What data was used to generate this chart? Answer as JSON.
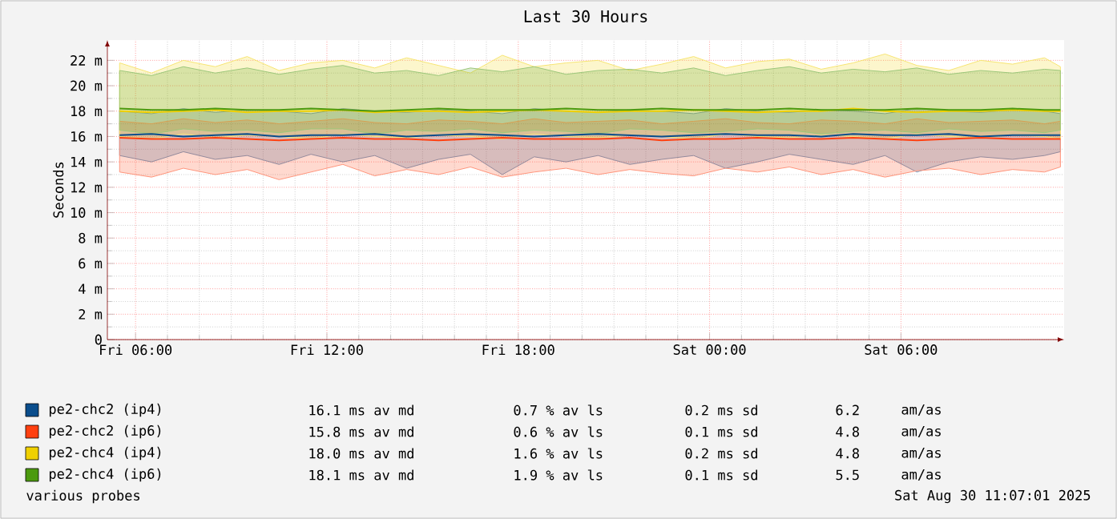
{
  "chart_data": {
    "type": "line",
    "title": "Last 30 Hours",
    "ylabel": "Seconds",
    "x": [
      "2025-08-29T05:30",
      "2025-08-29T06:30",
      "2025-08-29T07:30",
      "2025-08-29T08:30",
      "2025-08-29T09:30",
      "2025-08-29T10:30",
      "2025-08-29T11:30",
      "2025-08-29T12:30",
      "2025-08-29T13:30",
      "2025-08-29T14:30",
      "2025-08-29T15:30",
      "2025-08-29T16:30",
      "2025-08-29T17:30",
      "2025-08-29T18:30",
      "2025-08-29T19:30",
      "2025-08-29T20:30",
      "2025-08-29T21:30",
      "2025-08-29T22:30",
      "2025-08-29T23:30",
      "2025-08-30T00:30",
      "2025-08-30T01:30",
      "2025-08-30T02:30",
      "2025-08-30T03:30",
      "2025-08-30T04:30",
      "2025-08-30T05:30",
      "2025-08-30T06:30",
      "2025-08-30T07:30",
      "2025-08-30T08:30",
      "2025-08-30T09:30",
      "2025-08-30T10:30",
      "2025-08-30T11:00"
    ],
    "xlim": [
      "2025-08-29T05:07",
      "2025-08-30T11:07"
    ],
    "xticks": [
      {
        "value": "2025-08-29T06:00",
        "label": "Fri 06:00"
      },
      {
        "value": "2025-08-29T12:00",
        "label": "Fri 12:00"
      },
      {
        "value": "2025-08-29T18:00",
        "label": "Fri 18:00"
      },
      {
        "value": "2025-08-30T00:00",
        "label": "Sat 00:00"
      },
      {
        "value": "2025-08-30T06:00",
        "label": "Sat 06:00"
      }
    ],
    "ylim": [
      0,
      23.6
    ],
    "yticks": [
      0,
      {
        "value": 2,
        "label": "2 m"
      },
      {
        "value": 4,
        "label": "4 m"
      },
      {
        "value": 6,
        "label": "6 m"
      },
      {
        "value": 8,
        "label": "8 m"
      },
      {
        "value": 10,
        "label": "10 m"
      },
      {
        "value": 12,
        "label": "12 m"
      },
      {
        "value": 14,
        "label": "14 m"
      },
      {
        "value": 16,
        "label": "16 m"
      },
      {
        "value": 18,
        "label": "18 m"
      },
      {
        "value": 20,
        "label": "20 m"
      },
      {
        "value": 22,
        "label": "22 m"
      }
    ],
    "grid": true,
    "legend": "bottom",
    "line_style": "solid",
    "series": [
      {
        "name": "pe2-chc2 (ip4)",
        "color": "#0a4d8c",
        "values": [
          16.1,
          16.2,
          16.0,
          16.1,
          16.2,
          16.0,
          16.1,
          16.1,
          16.2,
          16.0,
          16.1,
          16.2,
          16.1,
          16.0,
          16.1,
          16.2,
          16.1,
          16.0,
          16.1,
          16.2,
          16.1,
          16.1,
          16.0,
          16.2,
          16.1,
          16.1,
          16.2,
          16.0,
          16.1,
          16.1,
          16.1
        ],
        "lower": [
          14.5,
          14.0,
          14.8,
          14.2,
          14.5,
          13.8,
          14.6,
          14.0,
          14.5,
          13.5,
          14.2,
          14.6,
          13.0,
          14.4,
          14.0,
          14.5,
          13.8,
          14.2,
          14.5,
          13.5,
          14.0,
          14.6,
          14.2,
          13.8,
          14.5,
          13.2,
          14.0,
          14.4,
          14.2,
          14.5,
          14.8
        ],
        "upper": [
          18.0,
          17.8,
          18.2,
          17.9,
          18.1,
          18.0,
          17.8,
          18.2,
          18.0,
          17.9,
          18.1,
          18.0,
          17.8,
          18.2,
          18.0,
          17.9,
          18.1,
          18.0,
          17.8,
          18.2,
          18.0,
          17.9,
          18.1,
          18.0,
          17.8,
          18.2,
          18.0,
          17.9,
          18.1,
          18.0,
          17.8
        ]
      },
      {
        "name": "pe2-chc2 (ip6)",
        "color": "#ff4010",
        "values": [
          15.9,
          15.8,
          15.8,
          15.9,
          15.8,
          15.7,
          15.8,
          15.9,
          15.8,
          15.8,
          15.7,
          15.8,
          15.9,
          15.8,
          15.8,
          15.8,
          15.9,
          15.7,
          15.8,
          15.8,
          15.9,
          15.8,
          15.8,
          15.9,
          15.8,
          15.7,
          15.8,
          15.9,
          15.8,
          15.8,
          15.8
        ],
        "lower": [
          13.2,
          12.8,
          13.5,
          13.0,
          13.4,
          12.6,
          13.2,
          13.8,
          12.9,
          13.4,
          13.0,
          13.6,
          12.8,
          13.2,
          13.5,
          13.0,
          13.4,
          13.1,
          12.9,
          13.5,
          13.2,
          13.6,
          13.0,
          13.4,
          12.8,
          13.3,
          13.5,
          13.0,
          13.4,
          13.2,
          13.6
        ],
        "upper": [
          17.2,
          17.0,
          17.4,
          17.1,
          17.3,
          17.0,
          17.2,
          17.4,
          17.1,
          17.0,
          17.3,
          17.2,
          17.0,
          17.4,
          17.1,
          17.2,
          17.3,
          17.0,
          17.2,
          17.4,
          17.1,
          17.0,
          17.3,
          17.2,
          17.0,
          17.4,
          17.1,
          17.2,
          17.3,
          17.0,
          17.2
        ]
      },
      {
        "name": "pe2-chc4 (ip4)",
        "color": "#f0d000",
        "values": [
          18.0,
          17.9,
          18.0,
          18.1,
          17.9,
          18.0,
          18.0,
          18.1,
          17.9,
          18.0,
          18.0,
          17.9,
          18.0,
          18.1,
          18.0,
          17.9,
          18.0,
          18.0,
          18.1,
          18.0,
          17.9,
          18.0,
          18.0,
          18.2,
          18.0,
          17.9,
          18.0,
          18.0,
          18.1,
          18.0,
          18.0
        ],
        "lower": [
          16.0,
          15.8,
          16.2,
          15.9,
          16.1,
          16.0,
          15.8,
          16.2,
          16.0,
          15.9,
          16.1,
          16.0,
          15.8,
          16.2,
          16.0,
          15.9,
          16.1,
          16.0,
          15.8,
          16.2,
          16.0,
          15.9,
          16.1,
          16.0,
          15.8,
          16.2,
          16.0,
          15.9,
          16.1,
          16.0,
          15.8
        ],
        "upper": [
          21.8,
          21.0,
          22.0,
          21.5,
          22.3,
          21.2,
          21.8,
          22.0,
          21.4,
          22.2,
          21.6,
          21.0,
          22.4,
          21.5,
          21.8,
          22.0,
          21.2,
          21.7,
          22.3,
          21.4,
          21.9,
          22.1,
          21.3,
          21.8,
          22.5,
          21.6,
          21.2,
          22.0,
          21.7,
          22.2,
          21.5
        ]
      },
      {
        "name": "pe2-chc4 (ip6)",
        "color": "#4c9a0e",
        "values": [
          18.2,
          18.1,
          18.1,
          18.2,
          18.1,
          18.1,
          18.2,
          18.1,
          18.0,
          18.1,
          18.2,
          18.1,
          18.1,
          18.1,
          18.2,
          18.1,
          18.1,
          18.2,
          18.1,
          18.1,
          18.1,
          18.2,
          18.1,
          18.1,
          18.1,
          18.2,
          18.1,
          18.1,
          18.2,
          18.1,
          18.1
        ],
        "lower": [
          16.5,
          16.2,
          16.6,
          16.4,
          16.5,
          16.3,
          16.6,
          16.6,
          16.2,
          16.5,
          16.4,
          16.6,
          16.3,
          16.5,
          16.4,
          16.2,
          16.6,
          16.5,
          16.3,
          16.4,
          16.6,
          16.5,
          16.2,
          16.4,
          16.5,
          16.3,
          16.6,
          16.4,
          16.5,
          16.3,
          16.5
        ],
        "upper": [
          21.2,
          20.8,
          21.5,
          21.0,
          21.4,
          20.9,
          21.3,
          21.6,
          21.0,
          21.2,
          20.8,
          21.4,
          21.1,
          21.5,
          20.9,
          21.2,
          21.3,
          21.0,
          21.4,
          20.8,
          21.2,
          21.5,
          21.0,
          21.3,
          21.1,
          21.4,
          20.9,
          21.2,
          21.0,
          21.3,
          21.2
        ]
      }
    ],
    "annotations": [
      "16.1 ms av md",
      "0.7 % av ls",
      "0.2 ms sd",
      "6.2",
      "am/as",
      "15.8 ms av md",
      "0.6 % av ls",
      "0.1 ms sd",
      "4.8",
      "am/as",
      "18.0 ms av md",
      "1.6 % av ls",
      "0.2 ms sd",
      "4.8",
      "am/as",
      "18.1 ms av md",
      "1.9 % av ls",
      "0.1 ms sd",
      "5.5",
      "am/as",
      "various probes",
      "Sat Aug 30 11:07:01 2025"
    ]
  }
}
